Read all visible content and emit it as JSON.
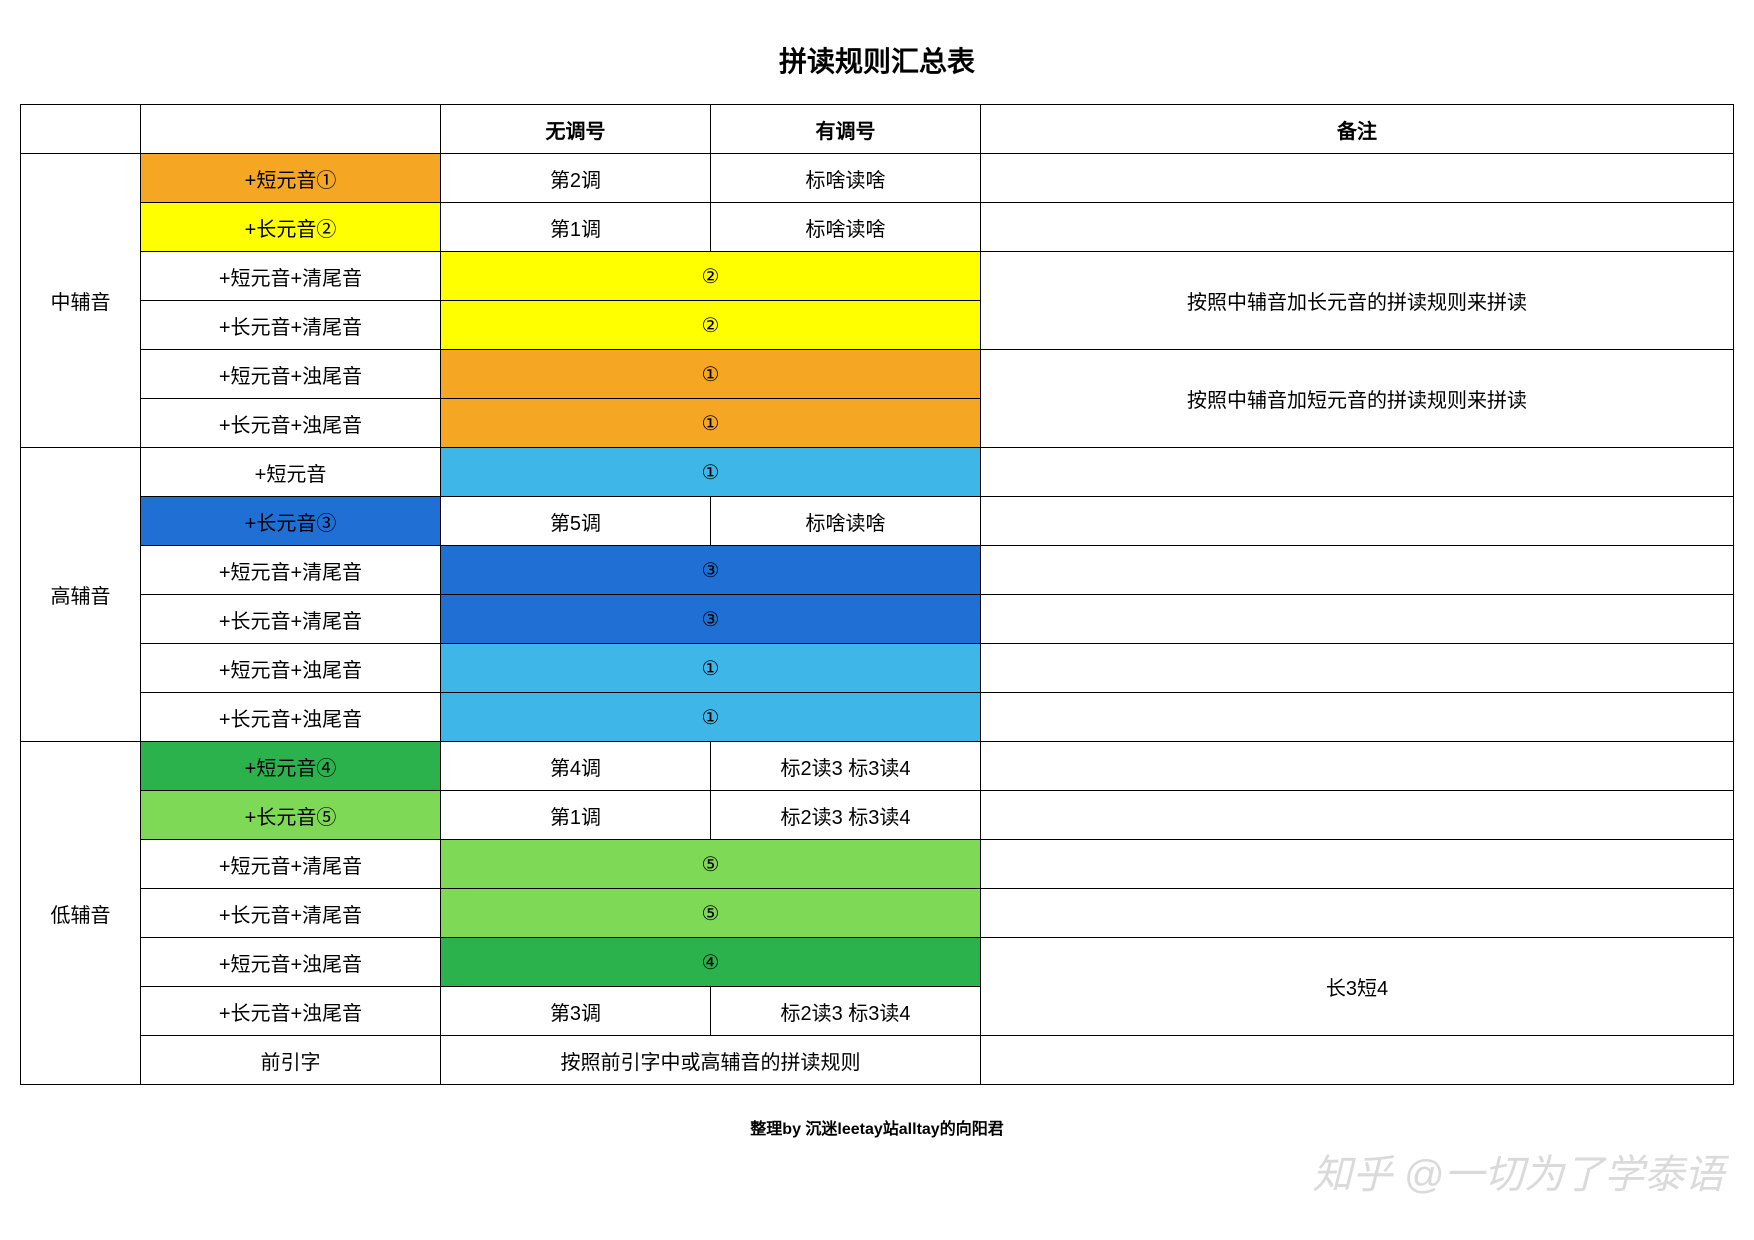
{
  "title": "拼读规则汇总表",
  "headers": {
    "no_tone": "无调号",
    "with_tone": "有调号",
    "note": "备注"
  },
  "colors": {
    "orange": "#f5a623",
    "yellow": "#ffff00",
    "blue_dark": "#1f6fd4",
    "blue_light": "#3fb6e8",
    "green_dark": "#2bb24c",
    "green_light": "#7ed957"
  },
  "groups": {
    "mid": "中辅音",
    "high": "高辅音",
    "low": "低辅音"
  },
  "rows": {
    "m1": {
      "pattern": "+短元音①",
      "no": "第2调",
      "yes": "标啥读啥",
      "pat_bg": "orange"
    },
    "m2": {
      "pattern": "+长元音②",
      "no": "第1调",
      "yes": "标啥读啥",
      "pat_bg": "yellow"
    },
    "m3": {
      "pattern": "+短元音+清尾音",
      "merged": "②",
      "merged_bg": "yellow"
    },
    "m4": {
      "pattern": "+长元音+清尾音",
      "merged": "②",
      "merged_bg": "yellow"
    },
    "m5": {
      "pattern": "+短元音+浊尾音",
      "merged": "①",
      "merged_bg": "orange"
    },
    "m6": {
      "pattern": "+长元音+浊尾音",
      "merged": "①",
      "merged_bg": "orange"
    },
    "m_note1": "按照中辅音加长元音的拼读规则来拼读",
    "m_note2": "按照中辅音加短元音的拼读规则来拼读",
    "h1": {
      "pattern": "+短元音",
      "merged": "①",
      "merged_bg": "blue_light"
    },
    "h2": {
      "pattern": "+长元音③",
      "no": "第5调",
      "yes": "标啥读啥",
      "pat_bg": "blue_dark"
    },
    "h3": {
      "pattern": "+短元音+清尾音",
      "merged": "③",
      "merged_bg": "blue_dark"
    },
    "h4": {
      "pattern": "+长元音+清尾音",
      "merged": "③",
      "merged_bg": "blue_dark"
    },
    "h5": {
      "pattern": "+短元音+浊尾音",
      "merged": "①",
      "merged_bg": "blue_light"
    },
    "h6": {
      "pattern": "+长元音+浊尾音",
      "merged": "①",
      "merged_bg": "blue_light"
    },
    "l1": {
      "pattern": "+短元音④",
      "no": "第4调",
      "yes": "标2读3  标3读4",
      "pat_bg": "green_dark"
    },
    "l2": {
      "pattern": "+长元音⑤",
      "no": "第1调",
      "yes": "标2读3  标3读4",
      "pat_bg": "green_light"
    },
    "l3": {
      "pattern": "+短元音+清尾音",
      "merged": "⑤",
      "merged_bg": "green_light"
    },
    "l4": {
      "pattern": "+长元音+清尾音",
      "merged": "⑤",
      "merged_bg": "green_light"
    },
    "l5": {
      "pattern": "+短元音+浊尾音",
      "merged": "④",
      "merged_bg": "green_dark"
    },
    "l6": {
      "pattern": "+长元音+浊尾音",
      "no": "第3调",
      "yes": "标2读3  标3读4"
    },
    "l7": {
      "pattern": "前引字",
      "full": "按照前引字中或高辅音的拼读规则"
    },
    "l_note": "长3短4"
  },
  "footer": "整理by 沉迷leetay站alltay的向阳君",
  "watermark": "知乎 @一切为了学泰语"
}
